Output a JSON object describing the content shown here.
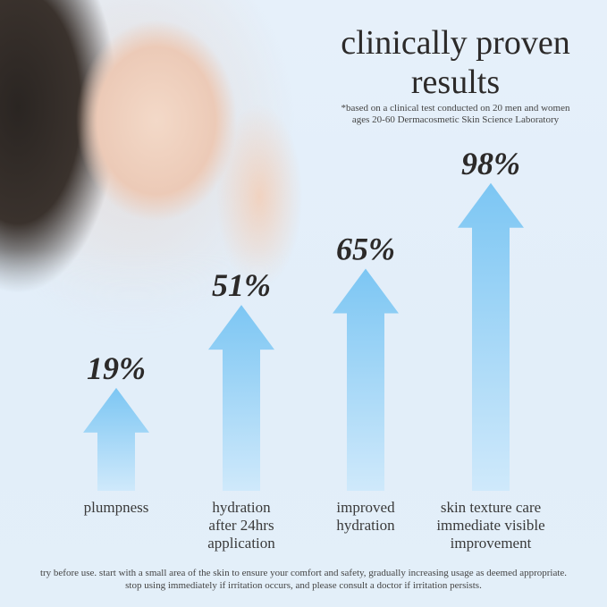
{
  "title_line1": "clinically proven",
  "title_line2": "results",
  "note_line1": "*based on a clinical test conducted on 20 men and women",
  "note_line2": "ages 20-60 Dermacosmetic Skin Science Laboratory",
  "colors": {
    "arrow_top": "#7cc6f3",
    "arrow_bottom": "#cfe9fb",
    "background": "#e3eef9",
    "text": "#2c2a29"
  },
  "chart_data": {
    "type": "bar",
    "categories": [
      "plumpness",
      "hydration after 24hrs application",
      "improved hydration",
      "skin texture care immediate visible improvement"
    ],
    "category_lines": [
      [
        "plumpness"
      ],
      [
        "hydration",
        "after 24hrs",
        "application"
      ],
      [
        "improved",
        "hydration"
      ],
      [
        "skin texture care",
        "immediate visible",
        "improvement"
      ]
    ],
    "values": [
      19,
      51,
      65,
      98
    ],
    "value_labels": [
      "19%",
      "51%",
      "65%",
      "98%"
    ],
    "unit": "%",
    "mark": "upward arrow"
  },
  "footer_line1": "try before use. start with a small area of the skin to ensure your comfort and safety, gradually increasing usage as deemed appropriate.",
  "footer_line2": "stop using immediately if irritation occurs, and please consult a doctor if irritation persists."
}
